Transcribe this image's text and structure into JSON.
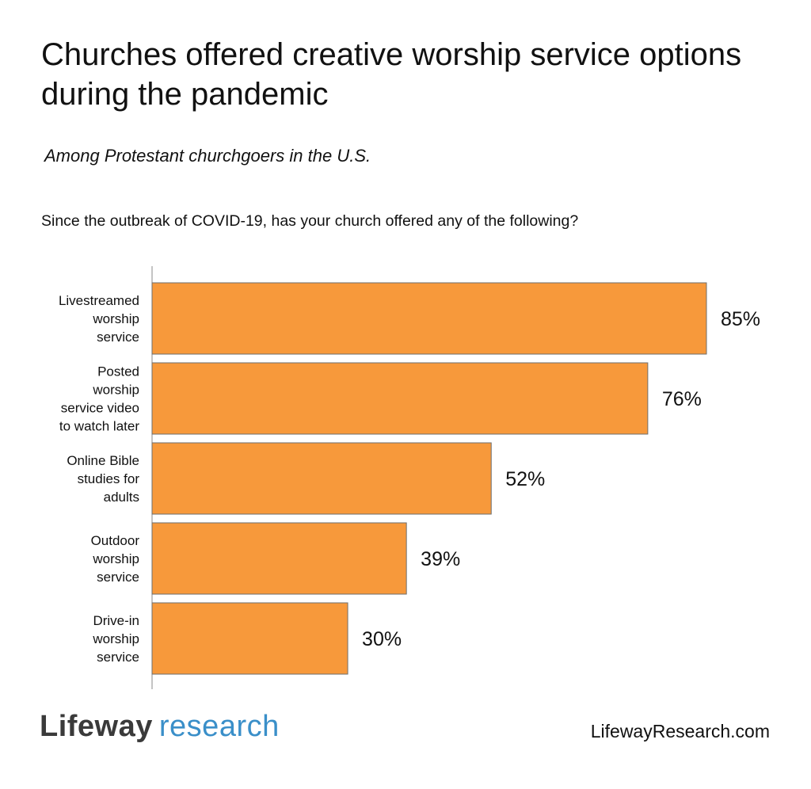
{
  "chart_data": {
    "type": "bar",
    "orientation": "horizontal",
    "title": "Churches offered creative worship service options during the pandemic",
    "subtitle": "Among Protestant churchgoers in the U.S.",
    "question": "Since the outbreak of COVID-19, has your church offered any of the following?",
    "categories": [
      [
        "Livestreamed",
        "worship",
        "service"
      ],
      [
        "Posted",
        "worship",
        "service video",
        "to watch later"
      ],
      [
        "Online Bible",
        "studies for",
        "adults"
      ],
      [
        "Outdoor",
        "worship",
        "service"
      ],
      [
        "Drive-in",
        "worship",
        "service"
      ]
    ],
    "values": [
      85,
      76,
      52,
      39,
      30
    ],
    "value_labels": [
      "85%",
      "76%",
      "52%",
      "39%",
      "30%"
    ],
    "xlim": [
      0,
      85
    ],
    "bar_color": "#F7993B",
    "grid": false
  },
  "footer": {
    "logo_primary": "Lifeway",
    "logo_secondary": "research",
    "website": "LifewayResearch.com"
  },
  "colors": {
    "bar": "#F7993B",
    "logo_primary": "#3a3a3a",
    "logo_secondary": "#3a8fc9"
  }
}
